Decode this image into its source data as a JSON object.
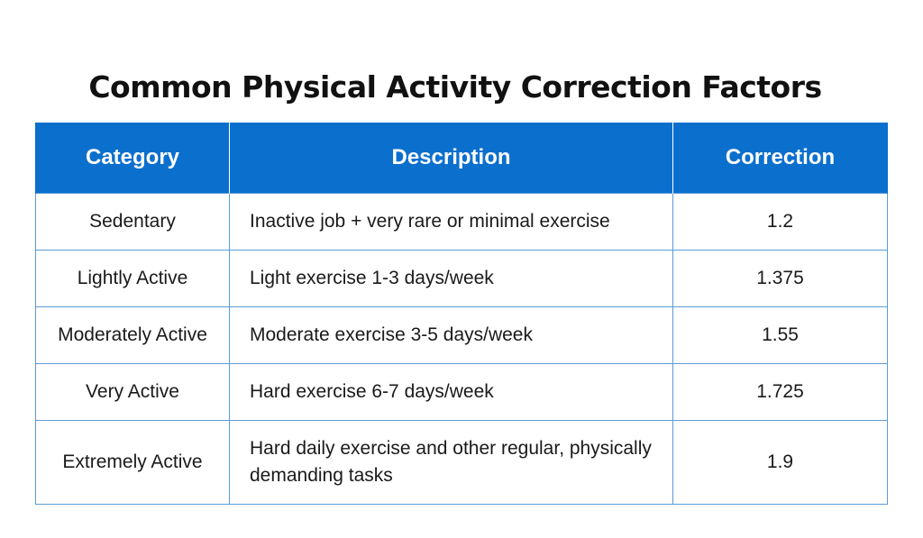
{
  "title": "Common Physical Activity Correction Factors",
  "table": {
    "headers": {
      "category": "Category",
      "description": "Description",
      "correction": "Correction"
    },
    "rows": [
      {
        "category": "Sedentary",
        "description": "Inactive job + very rare or minimal exercise",
        "correction": "1.2"
      },
      {
        "category": "Lightly Active",
        "description": "Light exercise 1-3 days/week",
        "correction": "1.375"
      },
      {
        "category": "Moderately Active",
        "description": "Moderate exercise 3-5 days/week",
        "correction": "1.55"
      },
      {
        "category": "Very Active",
        "description": "Hard exercise 6-7 days/week",
        "correction": "1.725"
      },
      {
        "category": "Extremely Active",
        "description": "Hard daily exercise and other regular, physically demanding tasks",
        "correction": "1.9"
      }
    ]
  },
  "colors": {
    "header_background": "#0b6fce",
    "header_text": "#ffffff",
    "grid_line": "#5b9bd8"
  }
}
